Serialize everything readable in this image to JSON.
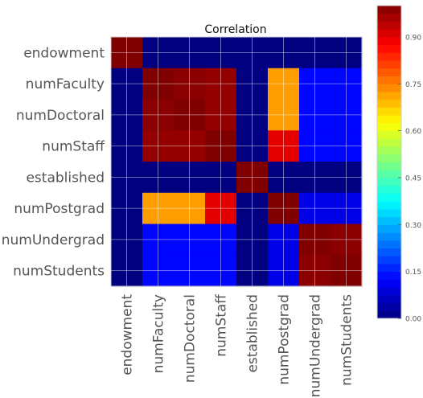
{
  "chart_data": {
    "type": "heatmap",
    "title": "Correlation",
    "xlabel": "",
    "ylabel": "",
    "row_labels": [
      "endowment",
      "numFaculty",
      "numDoctoral",
      "numStaff",
      "established",
      "numPostgrad",
      "numUndergrad",
      "numStudents"
    ],
    "col_labels": [
      "endowment",
      "numFaculty",
      "numDoctoral",
      "numStaff",
      "established",
      "numPostgrad",
      "numUndergrad",
      "numStudents"
    ],
    "values": [
      [
        1.0,
        0.0,
        0.0,
        0.0,
        0.0,
        0.0,
        0.0,
        0.0
      ],
      [
        0.0,
        1.0,
        0.99,
        0.98,
        0.0,
        0.72,
        0.13,
        0.13
      ],
      [
        0.0,
        0.99,
        1.0,
        0.98,
        0.0,
        0.72,
        0.13,
        0.13
      ],
      [
        0.0,
        0.98,
        0.98,
        1.0,
        0.0,
        0.9,
        0.13,
        0.13
      ],
      [
        0.0,
        0.0,
        0.0,
        0.0,
        1.0,
        0.0,
        0.0,
        0.0
      ],
      [
        0.0,
        0.72,
        0.72,
        0.9,
        0.0,
        1.0,
        0.1,
        0.1
      ],
      [
        0.0,
        0.13,
        0.13,
        0.13,
        0.0,
        0.1,
        1.0,
        0.99
      ],
      [
        0.0,
        0.13,
        0.13,
        0.13,
        0.0,
        0.1,
        0.99,
        1.0
      ]
    ],
    "colormap": "jet",
    "colorbar": {
      "range": [
        0,
        1
      ],
      "ticks": [
        0.0,
        0.15,
        0.3,
        0.45,
        0.6,
        0.75,
        0.9
      ],
      "tick_labels": [
        "0.00",
        "0.15",
        "0.30",
        "0.45",
        "0.60",
        "0.75",
        "0.90"
      ]
    },
    "grid": true
  }
}
